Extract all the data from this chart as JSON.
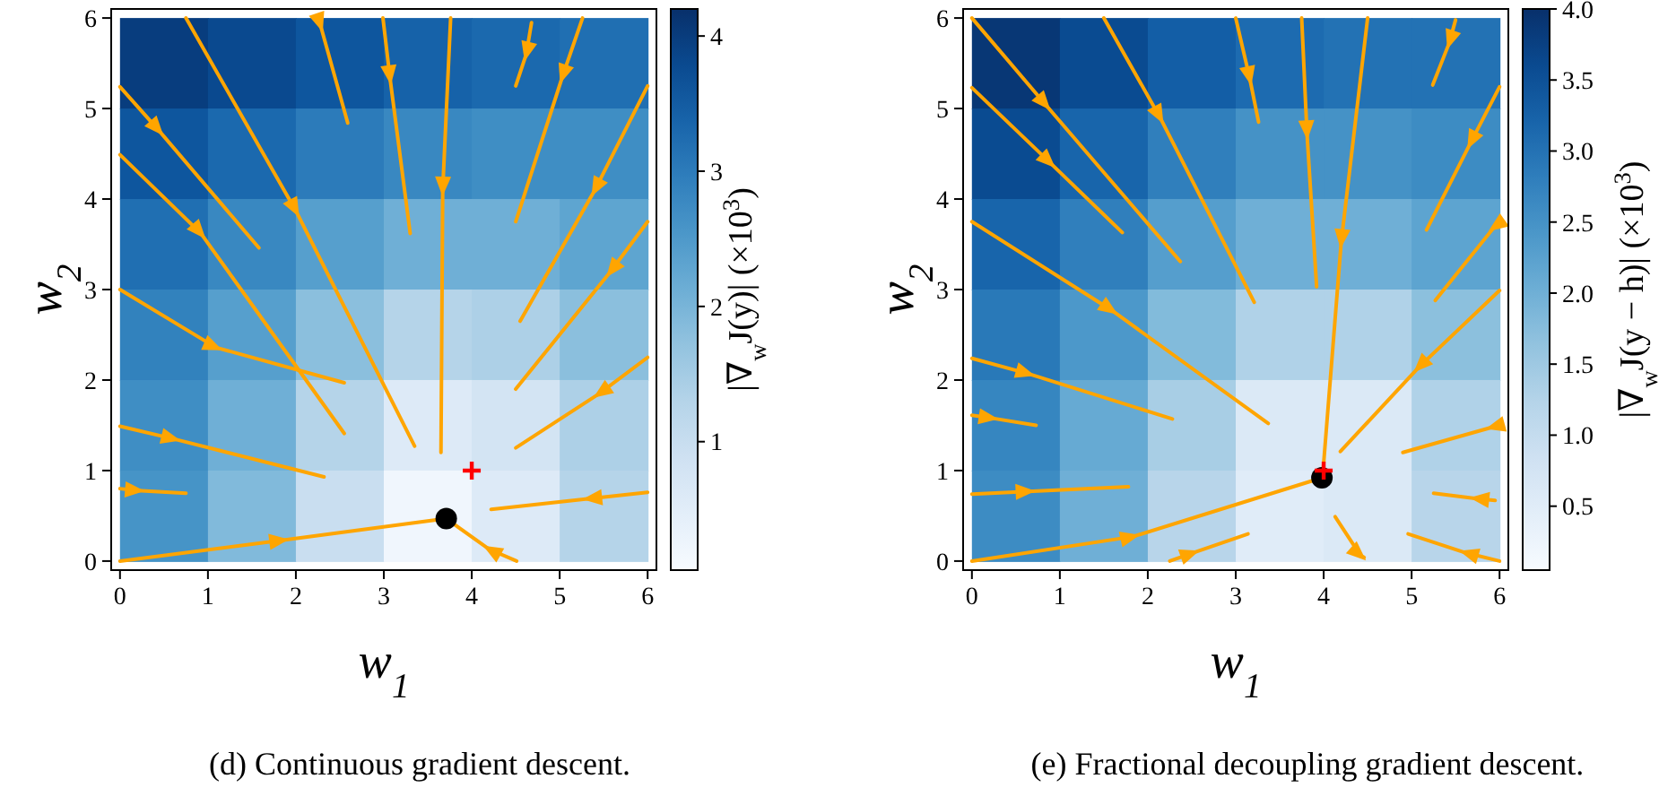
{
  "chart_data": [
    {
      "type": "heatmap",
      "xlabel": "w$_{1}$",
      "ylabel": "w$_{2}$",
      "clabel": "|∇$_{w}$J(y)|   (×10$^{3}$)",
      "annotations": [
        "(d) Continuous gradient descent."
      ],
      "x": [
        0.5,
        1.5,
        2.5,
        3.5,
        4.5,
        5.5
      ],
      "y": [
        5.5,
        4.5,
        3.5,
        2.5,
        1.5,
        0.5
      ],
      "cells": [
        [
          4.0,
          3.8,
          3.6,
          3.4,
          3.3,
          3.2
        ],
        [
          3.6,
          3.3,
          3.0,
          2.8,
          2.7,
          2.7
        ],
        [
          3.2,
          2.8,
          2.4,
          2.1,
          2.1,
          2.3
        ],
        [
          2.9,
          2.4,
          1.8,
          1.3,
          1.4,
          1.8
        ],
        [
          2.7,
          2.1,
          1.3,
          0.6,
          0.8,
          1.4
        ],
        [
          2.6,
          1.9,
          1.0,
          0.2,
          0.6,
          1.3
        ]
      ],
      "clim": [
        0.05,
        4.2
      ],
      "cticks": [
        1,
        2,
        3,
        4
      ],
      "xlim": [
        -0.1,
        6.1
      ],
      "ylim": [
        -0.1,
        6.1
      ],
      "xticks": [
        0,
        1,
        2,
        3,
        4,
        5,
        6
      ],
      "yticks": [
        0,
        1,
        2,
        3,
        4,
        5,
        6
      ],
      "series": [
        {
          "type": "line",
          "color": "#ffa500",
          "x": [
            0,
            1.84,
            3.71
          ],
          "values": [
            0,
            0.23,
            0.47
          ]
        },
        {
          "type": "line",
          "color": "#ffa500",
          "x": [
            4.51,
            4.2,
            3.78
          ],
          "values": [
            0,
            0.13,
            0.42
          ]
        },
        {
          "type": "line",
          "color": "#ffa500",
          "x": [
            6,
            5.34,
            4.22
          ],
          "values": [
            0.76,
            0.69,
            0.57
          ]
        },
        {
          "type": "line",
          "color": "#ffa500",
          "x": [
            0,
            0.2,
            0.75
          ],
          "values": [
            0.8,
            0.78,
            0.75
          ]
        },
        {
          "type": "line",
          "color": "#ffa500",
          "x": [
            0,
            0.61,
            2.32
          ],
          "values": [
            1.49,
            1.35,
            0.93
          ]
        },
        {
          "type": "line",
          "color": "#ffa500",
          "x": [
            0,
            1.09,
            2.55
          ],
          "values": [
            3,
            2.36,
            1.97
          ]
        },
        {
          "type": "line",
          "color": "#ffa500",
          "x": [
            0,
            0.92,
            2.55
          ],
          "values": [
            4.49,
            3.62,
            1.41
          ]
        },
        {
          "type": "line",
          "color": "#ffa500",
          "x": [
            0,
            0.44,
            1.58
          ],
          "values": [
            5.24,
            4.76,
            3.46
          ]
        },
        {
          "type": "line",
          "color": "#ffa500",
          "x": [
            0.75,
            2.0,
            3.35
          ],
          "values": [
            6,
            3.87,
            1.27
          ]
        },
        {
          "type": "line",
          "color": "#ffa500",
          "x": [
            2.26,
            2.28,
            2.59
          ],
          "values": [
            5.97,
            5.92,
            4.84
          ]
        },
        {
          "type": "line",
          "color": "#ffa500",
          "x": [
            2.99,
            3.07,
            3.3
          ],
          "values": [
            6,
            5.34,
            3.62
          ]
        },
        {
          "type": "line",
          "color": "#ffa500",
          "x": [
            3.76,
            3.67,
            3.65
          ],
          "values": [
            6,
            4.11,
            1.2
          ]
        },
        {
          "type": "line",
          "color": "#ffa500",
          "x": [
            4.68,
            4.62,
            4.5
          ],
          "values": [
            5.95,
            5.6,
            5.25
          ]
        },
        {
          "type": "line",
          "color": "#ffa500",
          "x": [
            5.26,
            5.03,
            4.5
          ],
          "values": [
            6,
            5.35,
            3.75
          ]
        },
        {
          "type": "line",
          "color": "#ffa500",
          "x": [
            6,
            5.4,
            4.55
          ],
          "values": [
            5.25,
            4.1,
            2.65
          ]
        },
        {
          "type": "line",
          "color": "#ffa500",
          "x": [
            6,
            5.58,
            4.5
          ],
          "values": [
            3.75,
            3.2,
            1.9
          ]
        },
        {
          "type": "line",
          "color": "#ffa500",
          "x": [
            6,
            5.45,
            4.5
          ],
          "values": [
            2.25,
            1.85,
            1.25
          ]
        },
        {
          "type": "scatter",
          "color": "#000000",
          "marker": "circle",
          "x": [
            3.71
          ],
          "values": [
            0.47
          ]
        },
        {
          "type": "scatter",
          "color": "#ff0000",
          "marker": "cross",
          "x": [
            4
          ],
          "values": [
            1
          ]
        }
      ]
    },
    {
      "type": "heatmap",
      "xlabel": "w$_{1}$",
      "ylabel": "w$_{2}$",
      "clabel": "|∇$_{w}$J(y − h)|   (×10$^{3}$)",
      "annotations": [
        "(e) Fractional decoupling gradient descent."
      ],
      "x": [
        0.5,
        1.5,
        2.5,
        3.5,
        4.5,
        5.5
      ],
      "y": [
        5.5,
        4.5,
        3.5,
        2.5,
        1.5,
        0.5
      ],
      "cells": [
        [
          3.9,
          3.6,
          3.3,
          3.1,
          3.0,
          3.0
        ],
        [
          3.6,
          3.2,
          2.8,
          2.5,
          2.5,
          2.6
        ],
        [
          3.2,
          2.8,
          2.3,
          2.0,
          2.0,
          2.2
        ],
        [
          2.9,
          2.4,
          1.8,
          1.3,
          1.3,
          1.7
        ],
        [
          2.7,
          2.1,
          1.4,
          0.6,
          0.6,
          1.3
        ],
        [
          2.6,
          2.0,
          1.2,
          0.5,
          0.6,
          1.2
        ]
      ],
      "clim": [
        0.05,
        4.0
      ],
      "cticks": [
        {
          "value": 0.5,
          "label": "0.5"
        },
        {
          "value": 1,
          "label": "1.0"
        },
        {
          "value": 1.5,
          "label": "1.5"
        },
        {
          "value": 2,
          "label": "2.0"
        },
        {
          "value": 2.5,
          "label": "2.5"
        },
        {
          "value": 3,
          "label": "3.0"
        },
        {
          "value": 3.5,
          "label": "3.5"
        },
        {
          "value": 4,
          "label": "4.0"
        }
      ],
      "xlim": [
        -0.1,
        6.1
      ],
      "ylim": [
        -0.1,
        6.1
      ],
      "xticks": [
        0,
        1,
        2,
        3,
        4,
        5,
        6
      ],
      "yticks": [
        0,
        1,
        2,
        3,
        4,
        5,
        6
      ],
      "series": [
        {
          "type": "line",
          "color": "#ffa500",
          "x": [
            0,
            0.84,
            2.37
          ],
          "values": [
            6,
            5.04,
            3.31
          ]
        },
        {
          "type": "line",
          "color": "#ffa500",
          "x": [
            0,
            0.89,
            1.71
          ],
          "values": [
            5.23,
            4.4,
            3.63
          ]
        },
        {
          "type": "line",
          "color": "#ffa500",
          "x": [
            0,
            1.59,
            3.37
          ],
          "values": [
            3.75,
            2.77,
            1.52
          ]
        },
        {
          "type": "line",
          "color": "#ffa500",
          "x": [
            0,
            0.64,
            2.28
          ],
          "values": [
            2.24,
            2.07,
            1.57
          ]
        },
        {
          "type": "line",
          "color": "#ffa500",
          "x": [
            0,
            0.22,
            0.73
          ],
          "values": [
            1.61,
            1.58,
            1.5
          ]
        },
        {
          "type": "line",
          "color": "#ffa500",
          "x": [
            0,
            0.64,
            1.78
          ],
          "values": [
            0.74,
            0.77,
            0.82
          ]
        },
        {
          "type": "line",
          "color": "#ffa500",
          "x": [
            0,
            1.83,
            3.98
          ],
          "values": [
            0,
            0.27,
            0.92
          ]
        },
        {
          "type": "line",
          "color": "#ffa500",
          "x": [
            2.25,
            2.51,
            3.14
          ],
          "values": [
            0,
            0.09,
            0.3
          ]
        },
        {
          "type": "line",
          "color": "#ffa500",
          "x": [
            4.13,
            4.42,
            4.46
          ],
          "values": [
            0.49,
            0.06,
            0.04
          ]
        },
        {
          "type": "line",
          "color": "#ffa500",
          "x": [
            6,
            5.62,
            4.96
          ],
          "values": [
            0,
            0.09,
            0.3
          ]
        },
        {
          "type": "line",
          "color": "#ffa500",
          "x": [
            5.95,
            5.74,
            5.25
          ],
          "values": [
            0.67,
            0.69,
            0.75
          ]
        },
        {
          "type": "line",
          "color": "#ffa500",
          "x": [
            6,
            5.92,
            4.9
          ],
          "values": [
            1.5,
            1.48,
            1.2
          ]
        },
        {
          "type": "line",
          "color": "#ffa500",
          "x": [
            6,
            5.08,
            4.19
          ],
          "values": [
            2.99,
            2.14,
            1.21
          ]
        },
        {
          "type": "line",
          "color": "#ffa500",
          "x": [
            6,
            5.94,
            5.27
          ],
          "values": [
            3.71,
            3.69,
            2.88
          ]
        },
        {
          "type": "line",
          "color": "#ffa500",
          "x": [
            6,
            5.67,
            5.17
          ],
          "values": [
            5.24,
            4.62,
            3.66
          ]
        },
        {
          "type": "line",
          "color": "#ffa500",
          "x": [
            5.5,
            5.43,
            5.24
          ],
          "values": [
            5.98,
            5.73,
            5.26
          ]
        },
        {
          "type": "line",
          "color": "#ffa500",
          "x": [
            4.5,
            4.2,
            3.99
          ],
          "values": [
            6,
            3.53,
            0.96
          ]
        },
        {
          "type": "line",
          "color": "#ffa500",
          "x": [
            3.75,
            3.81,
            3.92
          ],
          "values": [
            6,
            4.73,
            3.03
          ]
        },
        {
          "type": "line",
          "color": "#ffa500",
          "x": [
            3.0,
            3.16,
            3.26
          ],
          "values": [
            6,
            5.33,
            4.85
          ]
        },
        {
          "type": "line",
          "color": "#ffa500",
          "x": [
            1.5,
            2.14,
            3.21
          ],
          "values": [
            6,
            4.9,
            2.86
          ]
        },
        {
          "type": "scatter",
          "color": "#000000",
          "marker": "circle",
          "x": [
            3.98
          ],
          "values": [
            0.92
          ]
        },
        {
          "type": "scatter",
          "color": "#ff0000",
          "marker": "cross",
          "x": [
            4
          ],
          "values": [
            1
          ]
        }
      ]
    }
  ]
}
